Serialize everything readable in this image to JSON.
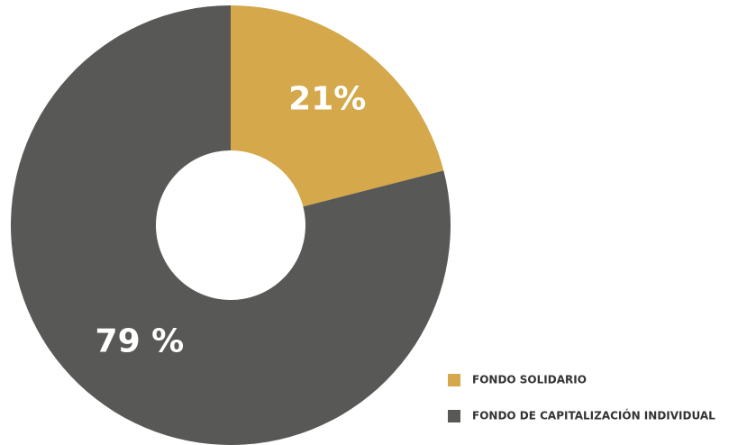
{
  "chart_data": {
    "type": "donut",
    "categories": [
      "FONDO SOLIDARIO",
      "FONDO DE CAPITALIZACIÓN INDIVIDUAL"
    ],
    "values": [
      21,
      79
    ],
    "value_labels": [
      "21%",
      "79 %"
    ],
    "colors": [
      "#d4a84b",
      "#585856"
    ]
  }
}
